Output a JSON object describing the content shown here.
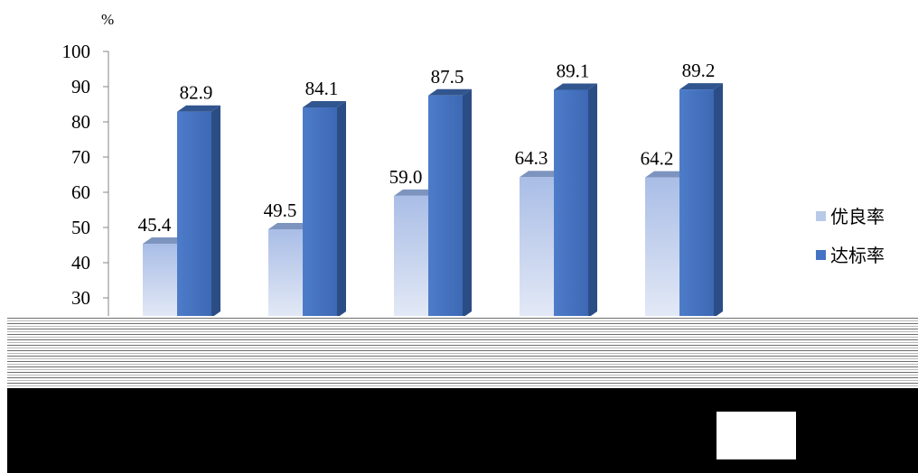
{
  "chart_data": {
    "type": "bar",
    "unit": "%",
    "categories": [
      "",
      "",
      "",
      "",
      ""
    ],
    "series": [
      {
        "name": "优良率",
        "values": [
          45.4,
          49.5,
          59.0,
          64.3,
          64.2
        ],
        "color": "#b9c9e8",
        "label_texts": [
          "45.4",
          "49.5",
          "59.0",
          "64.3",
          "64.2"
        ]
      },
      {
        "name": "达标率",
        "values": [
          82.9,
          84.1,
          87.5,
          89.1,
          89.2
        ],
        "color": "#4472c4",
        "label_texts": [
          "82.9",
          "84.1",
          "87.5",
          "89.1",
          "89.2"
        ]
      }
    ],
    "y_ticks": [
      "30",
      "40",
      "50",
      "60",
      "70",
      "80",
      "90",
      "100"
    ],
    "ylim": [
      20,
      100
    ],
    "grid": false,
    "legend_position": "right",
    "style": "3d-clustered-column"
  }
}
